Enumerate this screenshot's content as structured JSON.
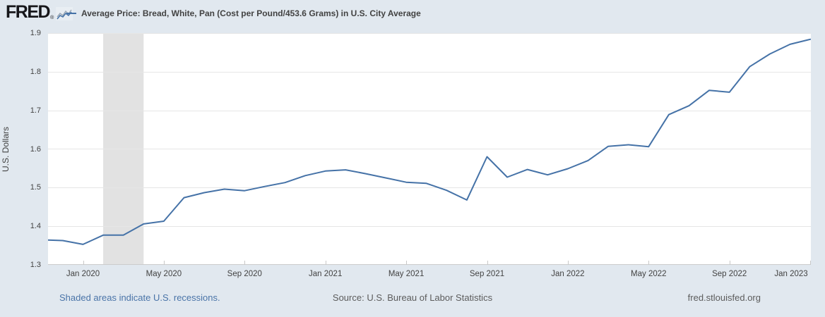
{
  "header": {
    "logo_text": "FRED",
    "reg_mark": "®",
    "series_title": "Average Price: Bread, White, Pan (Cost per Pound/453.6 Grams) in U.S. City Average"
  },
  "footer": {
    "recession_note": "Shaded areas indicate U.S. recessions.",
    "source": "Source: U.S. Bureau of Labor Statistics",
    "site": "fred.stlouisfed.org"
  },
  "colors": {
    "background": "#e1e8ef",
    "plot_background": "#ffffff",
    "line": "#4572a7",
    "gridline": "#e6e6e6",
    "axis_line": "#cccccc",
    "tick_mark": "#c8c8c8",
    "recession_band": "#e2e2e2",
    "title_text": "#424242",
    "footer_link": "#4a74a8",
    "footer_text": "#5c5c5c"
  },
  "chart_data": {
    "type": "line",
    "title": "Average Price: Bread, White, Pan (Cost per Pound/453.6 Grams) in U.S. City Average",
    "xlabel": "",
    "ylabel": "U.S. Dollars",
    "ylim": [
      1.3,
      1.9
    ],
    "y_ticks": [
      1.3,
      1.4,
      1.5,
      1.6,
      1.7,
      1.8,
      1.9
    ],
    "grid": true,
    "legend_position": "top",
    "x_ticks": [
      {
        "month": "2020-01",
        "label": "Jan 2020"
      },
      {
        "month": "2020-05",
        "label": "May 2020"
      },
      {
        "month": "2020-09",
        "label": "Sep 2020"
      },
      {
        "month": "2021-01",
        "label": "Jan 2021"
      },
      {
        "month": "2021-05",
        "label": "May 2021"
      },
      {
        "month": "2021-09",
        "label": "Sep 2021"
      },
      {
        "month": "2022-01",
        "label": "Jan 2022"
      },
      {
        "month": "2022-05",
        "label": "May 2022"
      },
      {
        "month": "2022-09",
        "label": "Sep 2022"
      },
      {
        "month": "2023-01",
        "label": "Jan 2023"
      }
    ],
    "recessions": [
      {
        "start": "2020-02",
        "end": "2020-04"
      }
    ],
    "series": [
      {
        "name": "Average Price: Bread, White, Pan (Cost per Pound/453.6 Grams) in U.S. City Average",
        "units": "U.S. Dollars",
        "points": [
          [
            "2019-11",
            1.365
          ],
          [
            "2019-12",
            1.363
          ],
          [
            "2020-01",
            1.353
          ],
          [
            "2020-02",
            1.377
          ],
          [
            "2020-03",
            1.377
          ],
          [
            "2020-04",
            1.406
          ],
          [
            "2020-05",
            1.413
          ],
          [
            "2020-06",
            1.474
          ],
          [
            "2020-07",
            1.487
          ],
          [
            "2020-08",
            1.496
          ],
          [
            "2020-09",
            1.492
          ],
          [
            "2020-10",
            1.503
          ],
          [
            "2020-11",
            1.513
          ],
          [
            "2020-12",
            1.531
          ],
          [
            "2021-01",
            1.543
          ],
          [
            "2021-02",
            1.546
          ],
          [
            "2021-03",
            1.536
          ],
          [
            "2021-04",
            1.525
          ],
          [
            "2021-05",
            1.514
          ],
          [
            "2021-06",
            1.511
          ],
          [
            "2021-07",
            1.493
          ],
          [
            "2021-08",
            1.468
          ],
          [
            "2021-09",
            1.58
          ],
          [
            "2021-10",
            1.527
          ],
          [
            "2021-11",
            1.547
          ],
          [
            "2021-12",
            1.533
          ],
          [
            "2022-01",
            1.549
          ],
          [
            "2022-02",
            1.57
          ],
          [
            "2022-03",
            1.607
          ],
          [
            "2022-04",
            1.611
          ],
          [
            "2022-05",
            1.606
          ],
          [
            "2022-06",
            1.689
          ],
          [
            "2022-07",
            1.712
          ],
          [
            "2022-08",
            1.752
          ],
          [
            "2022-09",
            1.747
          ],
          [
            "2022-10",
            1.813
          ],
          [
            "2022-11",
            1.846
          ],
          [
            "2022-12",
            1.871
          ],
          [
            "2023-01",
            1.884
          ]
        ]
      }
    ]
  }
}
